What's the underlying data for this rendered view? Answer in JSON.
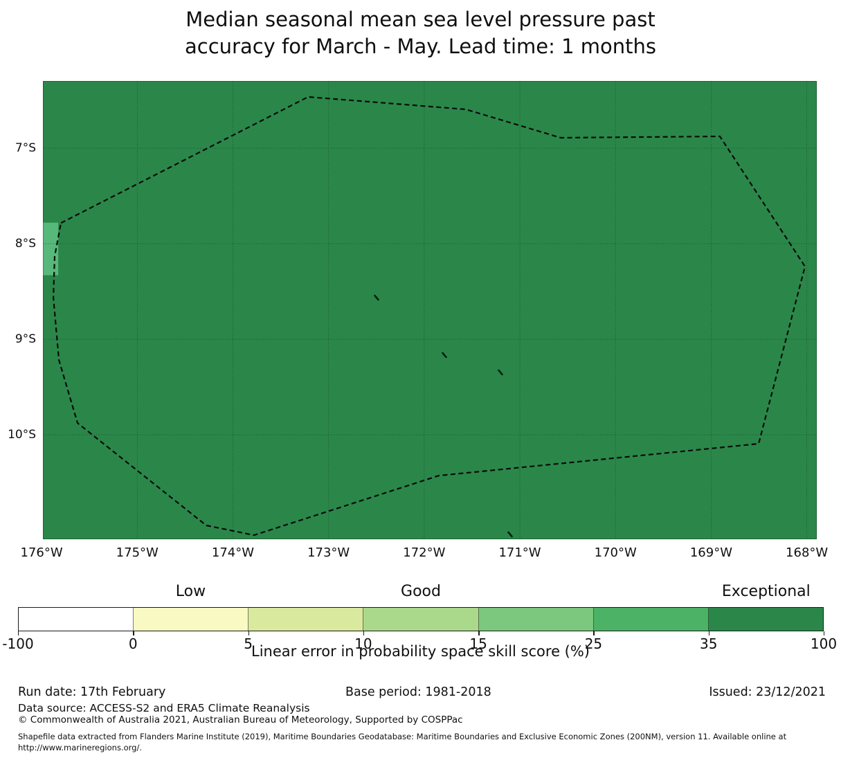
{
  "figure": {
    "title_line1": "Median seasonal mean sea level pressure past",
    "title_line2": "accuracy for March - May. Lead time: 1 months"
  },
  "chart_data": {
    "type": "map",
    "title": "Median seasonal mean sea level pressure past accuracy for March - May. Lead time: 1 months",
    "x_axis": {
      "tick_labels": [
        "176°W",
        "175°W",
        "174°W",
        "173°W",
        "172°W",
        "171°W",
        "170°W",
        "169°W",
        "168°W"
      ],
      "tick_values_deg_w": [
        176,
        175,
        174,
        173,
        172,
        171,
        170,
        169,
        168
      ],
      "range_deg_w": [
        175.986,
        167.896
      ]
    },
    "y_axis": {
      "tick_labels": [
        "7°S",
        "8°S",
        "9°S",
        "10°S"
      ],
      "tick_values_deg_s": [
        7,
        8,
        9,
        10
      ],
      "range_deg_s": [
        6.297,
        11.094
      ]
    },
    "grid": true,
    "map_fill_color": "#2a8749",
    "map_fill_value_bin": "35-100 (Exceptional)",
    "low_skill_cell": {
      "lon_w": [
        175.99,
        175.826
      ],
      "lat_s": [
        7.78,
        8.33
      ],
      "color": "#56b87a",
      "value_bin": "25-35"
    },
    "eez_boundary_deg_w_s": [
      [
        175.797,
        7.783
      ],
      [
        173.214,
        6.464
      ],
      [
        171.565,
        6.594
      ],
      [
        170.573,
        6.891
      ],
      [
        168.909,
        6.877
      ],
      [
        168.019,
        8.239
      ],
      [
        168.504,
        10.094
      ],
      [
        171.847,
        10.428
      ],
      [
        173.779,
        11.051
      ],
      [
        174.278,
        10.949
      ],
      [
        175.624,
        9.877
      ],
      [
        175.819,
        9.217
      ],
      [
        175.877,
        8.565
      ],
      [
        175.863,
        8.13
      ]
    ],
    "islands_deg_w_s": [
      [
        172.498,
        8.565
      ],
      [
        171.789,
        9.166
      ],
      [
        171.203,
        9.347
      ],
      [
        171.102,
        11.043
      ]
    ],
    "colorbar": {
      "tick_labels": [
        "-100",
        "0",
        "5",
        "10",
        "15",
        "25",
        "35",
        "100"
      ],
      "segment_colors": [
        "#ffffff",
        "#f9f9c3",
        "#d9e99e",
        "#abd98b",
        "#7bc87e",
        "#4cb266",
        "#2a8749"
      ],
      "category_labels": [
        {
          "label": "Low",
          "segment_index": 1
        },
        {
          "label": "Good",
          "segment_index": 3
        },
        {
          "label": "Exceptional",
          "segment_index": 6
        }
      ],
      "axis_label": "Linear error in probability space skill score (%)"
    }
  },
  "footer": {
    "run_date": "Run date: 17th February",
    "base_period": "Base period: 1981-2018",
    "issued": "Issued: 23/12/2021",
    "data_source": "Data source: ACCESS-S2 and ERA5 Climate Reanalysis",
    "copyright": "© Commonwealth of Australia 2021, Australian Bureau of Meteorology, Supported by COSPPac",
    "shapefile_line1": "Shapefile data extracted from Flanders Marine Institute (2019), Maritime Boundaries Geodatabase: Maritime Boundaries and Exclusive Economic Zones (200NM), version 11. Available online at",
    "shapefile_line2": "http://www.marineregions.org/."
  }
}
